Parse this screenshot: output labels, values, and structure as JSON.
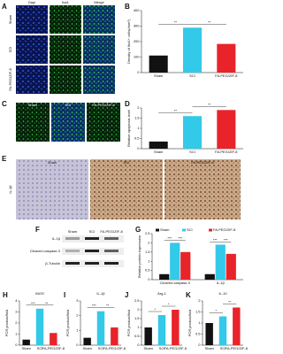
{
  "images": {
    "A": {
      "panel": "A",
      "columns": [
        "Dapi",
        "Iba1",
        "Merge"
      ],
      "rows": [
        "Sham",
        "SCI",
        "FA-PEG/ZIF-8"
      ]
    },
    "C": {
      "panel": "C",
      "columns": [
        "Sham",
        "SCI",
        "FA-PEG/ZIF-8"
      ]
    },
    "E": {
      "panel": "E",
      "columns": [
        "Sham",
        "SCI",
        "FA-PEG/ZIF-8"
      ],
      "row": "IL-1β"
    },
    "F": {
      "panel": "F",
      "lanes": [
        "Sham",
        "SCI",
        "FA-PEG/ZIF-8"
      ],
      "rows": [
        "IL-1β",
        "Cleaved caspase-3",
        "β-Tubulin"
      ]
    }
  },
  "chart_data": [
    {
      "type": "bar",
      "panel": "B",
      "ylabel": "Density of Iba1+ cells(/mm²)",
      "categories": [
        "Sham",
        "SCI",
        "FA-PEG/ZIF-8"
      ],
      "values": [
        110,
        290,
        185
      ],
      "colors": [
        "#111111",
        "#33c9e8",
        "#e8232a"
      ],
      "ylim": [
        0,
        400
      ],
      "yticks": [
        0,
        100,
        200,
        300,
        400
      ],
      "annotations": [
        "**",
        "**"
      ]
    },
    {
      "type": "bar",
      "panel": "D",
      "ylabel": "Relative apoptosis level",
      "categories": [
        "Sham",
        "SCI",
        "FA-PEG/ZIF-8"
      ],
      "values": [
        0.35,
        1.6,
        1.9
      ],
      "colors": [
        "#111111",
        "#33c9e8",
        "#e8232a"
      ],
      "ylim": [
        0,
        2
      ],
      "yticks": [
        0,
        0.5,
        1,
        1.5,
        2
      ],
      "annotations": [
        "**",
        "**"
      ]
    },
    {
      "type": "grouped",
      "panel": "G",
      "ylabel": "Relative protein expression",
      "categories": [
        "Cleaved caspase-3",
        "IL-1β"
      ],
      "series": [
        {
          "name": "Sham",
          "color": "#111111",
          "values": [
            0.3,
            0.3
          ]
        },
        {
          "name": "SCI",
          "color": "#33c9e8",
          "values": [
            2.0,
            1.9
          ]
        },
        {
          "name": "FA-PEG/ZIF-8",
          "color": "#e8232a",
          "values": [
            1.5,
            1.4
          ]
        }
      ],
      "ylim": [
        0,
        2.5
      ],
      "yticks": [
        0,
        0.5,
        1,
        1.5,
        2,
        2.5
      ],
      "annotations": [
        "***",
        "***",
        "***",
        "***"
      ]
    },
    {
      "type": "bar",
      "panel": "H",
      "title": "iNOS",
      "ylabel": "PCR product/fold",
      "categories": [
        "Sham",
        "SCI",
        "FA-PEG/ZIF-8"
      ],
      "values": [
        0.5,
        3.3,
        1.1
      ],
      "colors": [
        "#111111",
        "#33c9e8",
        "#e8232a"
      ],
      "ylim": [
        0,
        4
      ],
      "yticks": [
        0,
        1,
        2,
        3,
        4
      ],
      "annotations": [
        "***",
        "**"
      ]
    },
    {
      "type": "bar",
      "panel": "I",
      "title": "IL-1β",
      "ylabel": "PCR product/fold",
      "categories": [
        "Sham",
        "SCI",
        "FA-PEG/ZIF-8"
      ],
      "values": [
        0.5,
        2.3,
        1.2
      ],
      "colors": [
        "#111111",
        "#33c9e8",
        "#e8232a"
      ],
      "ylim": [
        0,
        3
      ],
      "yticks": [
        0,
        1,
        2,
        3
      ],
      "annotations": [
        "***",
        "**"
      ]
    },
    {
      "type": "bar",
      "panel": "J",
      "title": "Arg-1",
      "ylabel": "PCR product/fold",
      "categories": [
        "Sham",
        "SCI",
        "FA-PEG/ZIF-8"
      ],
      "values": [
        1.0,
        1.7,
        2.0
      ],
      "colors": [
        "#111111",
        "#33c9e8",
        "#e8232a"
      ],
      "ylim": [
        0,
        2.5
      ],
      "yticks": [
        0,
        0.5,
        1,
        1.5,
        2,
        2.5
      ],
      "annotations": [
        "*",
        "*"
      ]
    },
    {
      "type": "bar",
      "panel": "K",
      "title": "IL-10",
      "ylabel": "PCR product/fold",
      "categories": [
        "Sham",
        "SCI",
        "FA-PEG/ZIF-8"
      ],
      "values": [
        1.0,
        1.3,
        1.7
      ],
      "colors": [
        "#111111",
        "#33c9e8",
        "#e8232a"
      ],
      "ylim": [
        0,
        2
      ],
      "yticks": [
        0,
        0.5,
        1,
        1.5,
        2
      ],
      "annotations": [
        "*",
        "**"
      ]
    }
  ]
}
